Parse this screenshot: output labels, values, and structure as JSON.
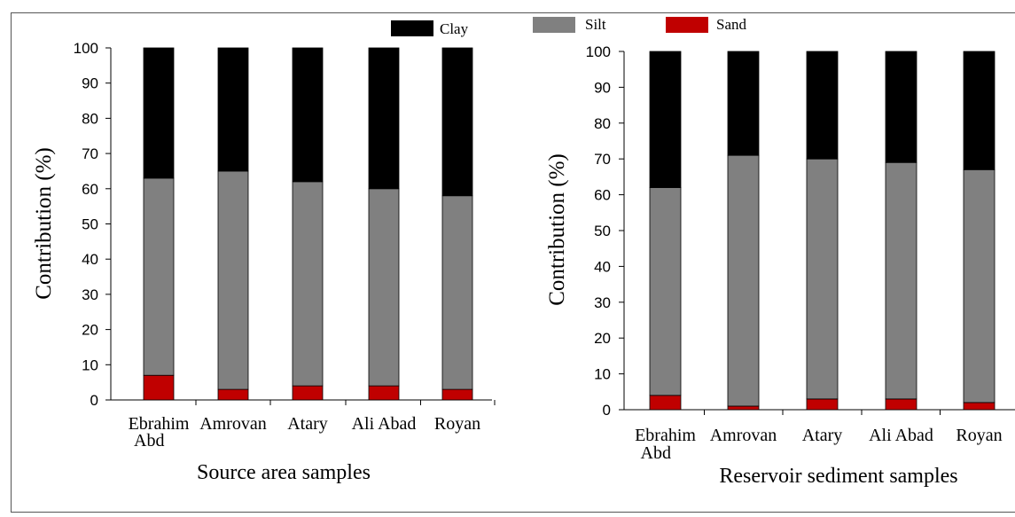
{
  "legend": [
    {
      "label": "Clay",
      "color": "#000000"
    },
    {
      "label": "Silt",
      "color": "#808080"
    },
    {
      "label": "Sand",
      "color": "#c00000"
    }
  ],
  "chart_data": [
    {
      "type": "bar",
      "stacked": true,
      "categories": [
        "Ebrahim Abd",
        "Amrovan",
        "Atary",
        "Ali Abad",
        "Royan"
      ],
      "category_lines": [
        [
          "Ebrahim",
          "Abd"
        ],
        [
          "Amrovan"
        ],
        [
          "Atary"
        ],
        [
          "Ali Abad"
        ],
        [
          "Royan"
        ]
      ],
      "series": [
        {
          "name": "Sand",
          "values": [
            7,
            3,
            4,
            4,
            3
          ],
          "color": "#c00000"
        },
        {
          "name": "Silt",
          "values": [
            56,
            62,
            58,
            56,
            55
          ],
          "color": "#808080"
        },
        {
          "name": "Clay",
          "values": [
            37,
            35,
            38,
            40,
            42
          ],
          "color": "#000000"
        }
      ],
      "xlabel": "Source area samples",
      "ylabel": "Contribution (%)",
      "ylim": [
        0,
        100
      ],
      "yticks": [
        0,
        10,
        20,
        30,
        40,
        50,
        60,
        70,
        80,
        90,
        100
      ],
      "grid": false
    },
    {
      "type": "bar",
      "stacked": true,
      "categories": [
        "Ebrahim Abd",
        "Amrovan",
        "Atary",
        "Ali Abad",
        "Royan"
      ],
      "category_lines": [
        [
          "Ebrahim",
          "Abd"
        ],
        [
          "Amrovan"
        ],
        [
          "Atary"
        ],
        [
          "Ali Abad"
        ],
        [
          "Royan"
        ]
      ],
      "series": [
        {
          "name": "Sand",
          "values": [
            4,
            1,
            3,
            3,
            2
          ],
          "color": "#c00000"
        },
        {
          "name": "Silt",
          "values": [
            58,
            70,
            67,
            66,
            65
          ],
          "color": "#808080"
        },
        {
          "name": "Clay",
          "values": [
            38,
            29,
            30,
            31,
            33
          ],
          "color": "#000000"
        }
      ],
      "xlabel": "Reservoir sediment samples",
      "ylabel": "Contribution (%)",
      "ylim": [
        0,
        100
      ],
      "yticks": [
        0,
        10,
        20,
        30,
        40,
        50,
        60,
        70,
        80,
        90,
        100
      ],
      "grid": false
    }
  ]
}
